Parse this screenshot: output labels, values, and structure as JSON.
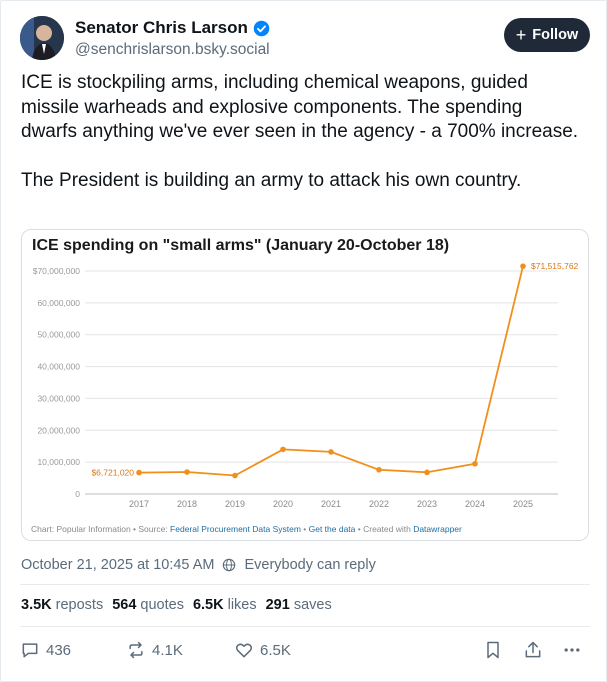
{
  "author": {
    "name": "Senator Chris Larson",
    "handle": "@senchrislarson.bsky.social"
  },
  "follow_button": {
    "label": "Follow"
  },
  "post": {
    "paragraph_1": "ICE is stockpiling arms, including chemical weapons, guided missile warheads and explosive components. The spending dwarfs anything we've ever seen in the agency - a 700% increase.",
    "paragraph_2": "The President is building an army to attack his own country."
  },
  "chart_data": {
    "type": "line",
    "title": "ICE spending on \"small arms\" (January 20-October 18)",
    "x": [
      "2017",
      "2018",
      "2019",
      "2020",
      "2021",
      "2022",
      "2023",
      "2024",
      "2025"
    ],
    "series": [
      {
        "values": [
          6721020,
          6900000,
          5800000,
          14000000,
          13200000,
          7600000,
          6800000,
          9500000,
          71515762
        ]
      }
    ],
    "ylim": [
      0,
      70000000
    ],
    "y_ticks": [
      "$70,000,000",
      "60,000,000",
      "50,000,000",
      "40,000,000",
      "30,000,000",
      "20,000,000",
      "10,000,000",
      "0"
    ],
    "annotations": {
      "first": "$6,721,020",
      "last": "$71,515,762"
    },
    "line_color": "#f18f1c",
    "grid": true,
    "footer": {
      "chart_credit": "Chart: Popular Information • Source: ",
      "source_link": "Federal Procurement Data System",
      "sep": " • ",
      "data_link": "Get the data",
      "created": " • Created with ",
      "tool_link": "Datawrapper"
    }
  },
  "meta": {
    "timestamp": "October 21, 2025 at 10:45 AM",
    "reply_setting": "Everybody can reply"
  },
  "stats": {
    "reposts_count": "3.5K",
    "reposts_label": "reposts",
    "quotes_count": "564",
    "quotes_label": "quotes",
    "likes_count": "6.5K",
    "likes_label": "likes",
    "saves_count": "291",
    "saves_label": "saves"
  },
  "actions": {
    "replies": "436",
    "reposts": "4.1K",
    "likes": "6.5K"
  },
  "icons": {
    "verified": "verified-badge-icon",
    "reply_setting": "globe-icon",
    "reply": "comment-icon",
    "repost": "repost-icon",
    "like": "heart-icon",
    "bookmark": "bookmark-icon",
    "share": "share-icon",
    "more": "more-icon"
  },
  "colors": {
    "accent": "#0085ff",
    "follow_bg": "#1f2937",
    "muted": "#5b6b7b"
  }
}
